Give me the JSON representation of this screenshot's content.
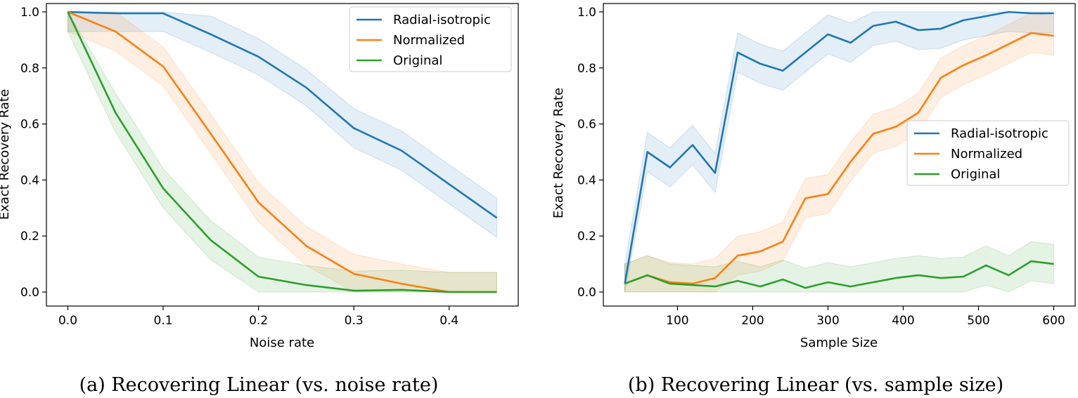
{
  "chart_data": [
    {
      "type": "line",
      "caption": "(a) Recovering Linear (vs. noise rate)",
      "xlabel": "Noise rate",
      "ylabel": "Exact Recovery Rate",
      "xlim": [
        -0.0225,
        0.4725
      ],
      "ylim": [
        -0.05,
        1.03
      ],
      "xticks": [
        0.0,
        0.1,
        0.2,
        0.3,
        0.4
      ],
      "xtick_labels": [
        "0.0",
        "0.1",
        "0.2",
        "0.3",
        "0.4"
      ],
      "yticks": [
        0.0,
        0.2,
        0.4,
        0.6,
        0.8,
        1.0
      ],
      "ytick_labels": [
        "0.0",
        "0.2",
        "0.4",
        "0.6",
        "0.8",
        "1.0"
      ],
      "legend_position": "top-right",
      "x": [
        0.0,
        0.05,
        0.1,
        0.15,
        0.2,
        0.25,
        0.3,
        0.35,
        0.4,
        0.45
      ],
      "series": [
        {
          "name": "Radial-isotropic",
          "color": "#1f77b4",
          "values": [
            1.0,
            0.995,
            0.995,
            0.92,
            0.84,
            0.73,
            0.585,
            0.505,
            0.385,
            0.265
          ],
          "lower": [
            0.93,
            0.93,
            0.93,
            0.855,
            0.775,
            0.665,
            0.515,
            0.435,
            0.315,
            0.195
          ],
          "upper": [
            1.0,
            1.0,
            1.0,
            0.985,
            0.905,
            0.795,
            0.655,
            0.575,
            0.455,
            0.335
          ]
        },
        {
          "name": "Normalized",
          "color": "#ff7f0e",
          "values": [
            1.0,
            0.93,
            0.805,
            0.565,
            0.32,
            0.165,
            0.065,
            0.03,
            0.0,
            0.0
          ],
          "lower": [
            0.93,
            0.86,
            0.735,
            0.495,
            0.25,
            0.095,
            0.0,
            0.0,
            0.0,
            0.0
          ],
          "upper": [
            1.0,
            1.0,
            0.875,
            0.635,
            0.39,
            0.235,
            0.135,
            0.1,
            0.07,
            0.07
          ]
        },
        {
          "name": "Original",
          "color": "#2ca02c",
          "values": [
            1.0,
            0.64,
            0.37,
            0.185,
            0.055,
            0.025,
            0.005,
            0.008,
            0.0,
            0.0
          ],
          "lower": [
            0.93,
            0.57,
            0.3,
            0.115,
            0.0,
            0.0,
            0.0,
            0.0,
            0.0,
            0.0
          ],
          "upper": [
            1.0,
            0.71,
            0.44,
            0.255,
            0.125,
            0.095,
            0.075,
            0.078,
            0.07,
            0.07
          ]
        }
      ]
    },
    {
      "type": "line",
      "caption": "(b) Recovering Linear (vs. sample size)",
      "xlabel": "Sample Size",
      "ylabel": "Exact Recovery Rate",
      "xlim": [
        1.5,
        628.5
      ],
      "ylim": [
        -0.05,
        1.03
      ],
      "xticks": [
        100,
        200,
        300,
        400,
        500,
        600
      ],
      "xtick_labels": [
        "100",
        "200",
        "300",
        "400",
        "500",
        "600"
      ],
      "yticks": [
        0.0,
        0.2,
        0.4,
        0.6,
        0.8,
        1.0
      ],
      "ytick_labels": [
        "0.0",
        "0.2",
        "0.4",
        "0.6",
        "0.8",
        "1.0"
      ],
      "legend_position": "center-right",
      "x": [
        30,
        60,
        90,
        120,
        150,
        180,
        210,
        240,
        270,
        300,
        330,
        360,
        390,
        420,
        450,
        480,
        510,
        540,
        570,
        600
      ],
      "series": [
        {
          "name": "Radial-isotropic",
          "color": "#1f77b4",
          "values": [
            0.03,
            0.5,
            0.445,
            0.525,
            0.425,
            0.855,
            0.815,
            0.79,
            0.855,
            0.92,
            0.89,
            0.95,
            0.965,
            0.935,
            0.94,
            0.97,
            0.985,
            1.0,
            0.995,
            0.995
          ],
          "lower": [
            0.0,
            0.43,
            0.375,
            0.455,
            0.355,
            0.785,
            0.745,
            0.72,
            0.785,
            0.85,
            0.82,
            0.88,
            0.895,
            0.865,
            0.87,
            0.9,
            0.915,
            0.93,
            0.925,
            0.925
          ],
          "upper": [
            0.1,
            0.57,
            0.515,
            0.595,
            0.495,
            0.925,
            0.885,
            0.86,
            0.925,
            0.99,
            0.96,
            1.0,
            1.0,
            1.0,
            1.0,
            1.0,
            1.0,
            1.0,
            1.0,
            1.0
          ]
        },
        {
          "name": "Normalized",
          "color": "#ff7f0e",
          "values": [
            0.03,
            0.06,
            0.035,
            0.03,
            0.05,
            0.13,
            0.145,
            0.18,
            0.335,
            0.35,
            0.465,
            0.565,
            0.59,
            0.64,
            0.765,
            0.81,
            0.845,
            0.885,
            0.925,
            0.915
          ],
          "lower": [
            0.0,
            0.0,
            0.0,
            0.0,
            0.0,
            0.06,
            0.075,
            0.11,
            0.265,
            0.28,
            0.395,
            0.495,
            0.52,
            0.57,
            0.695,
            0.74,
            0.775,
            0.815,
            0.855,
            0.845
          ],
          "upper": [
            0.1,
            0.13,
            0.105,
            0.1,
            0.12,
            0.2,
            0.215,
            0.25,
            0.405,
            0.42,
            0.535,
            0.635,
            0.66,
            0.71,
            0.835,
            0.88,
            0.915,
            0.955,
            0.995,
            0.985
          ]
        },
        {
          "name": "Original",
          "color": "#2ca02c",
          "values": [
            0.03,
            0.06,
            0.03,
            0.025,
            0.02,
            0.04,
            0.02,
            0.045,
            0.015,
            0.035,
            0.02,
            0.035,
            0.05,
            0.06,
            0.05,
            0.055,
            0.095,
            0.06,
            0.11,
            0.1
          ],
          "lower": [
            0.0,
            0.0,
            0.0,
            0.0,
            0.0,
            0.0,
            0.0,
            0.0,
            0.0,
            0.0,
            0.0,
            0.0,
            0.0,
            0.0,
            0.0,
            0.0,
            0.025,
            0.0,
            0.04,
            0.03
          ],
          "upper": [
            0.1,
            0.13,
            0.1,
            0.095,
            0.09,
            0.11,
            0.09,
            0.115,
            0.085,
            0.105,
            0.09,
            0.105,
            0.12,
            0.13,
            0.12,
            0.125,
            0.165,
            0.13,
            0.18,
            0.17
          ]
        }
      ]
    }
  ]
}
